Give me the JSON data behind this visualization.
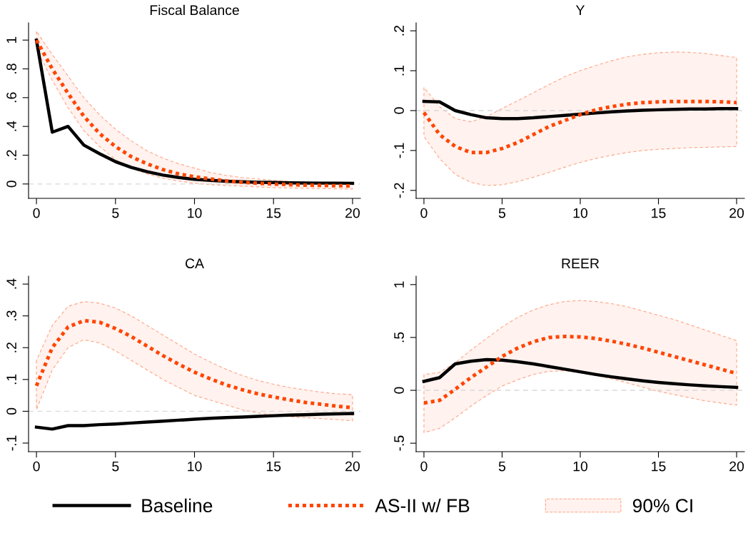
{
  "chart_data": [
    {
      "type": "line",
      "title": "Fiscal Balance",
      "x": [
        0,
        1,
        2,
        3,
        4,
        5,
        6,
        7,
        8,
        9,
        10,
        11,
        12,
        13,
        14,
        15,
        16,
        17,
        18,
        19,
        20
      ],
      "xlim": [
        -0.5,
        20.5
      ],
      "xticks": [
        0,
        5,
        10,
        15,
        20
      ],
      "ylim": [
        -0.1,
        1.12
      ],
      "yticks": [
        0,
        {
          "value": 0.2,
          "label": ".2"
        },
        {
          "value": 0.4,
          "label": ".4"
        },
        {
          "value": 0.6,
          "label": ".6"
        },
        {
          "value": 0.8,
          "label": ".8"
        },
        1
      ],
      "grid": false,
      "ref_lines": [
        {
          "axis": "y",
          "value": 0,
          "color": "#d9d9d9",
          "line_style": "dashed"
        }
      ],
      "series": [
        {
          "color": "#000000",
          "line_style": "solid",
          "values": [
            1,
            0.36,
            0.4,
            0.27,
            0.21,
            0.155,
            0.115,
            0.085,
            0.062,
            0.045,
            0.033,
            0.025,
            0.019,
            0.015,
            0.012,
            0.01,
            0.008,
            0.007,
            0.006,
            0.006,
            0.005
          ]
        },
        {
          "color": "#ff4500",
          "line_style": "dotted",
          "values": [
            1,
            0.8,
            0.63,
            0.47,
            0.35,
            0.26,
            0.19,
            0.14,
            0.1,
            0.07,
            0.05,
            0.035,
            0.022,
            0.012,
            0.005,
            0,
            -0.005,
            -0.008,
            -0.01,
            -0.012,
            -0.013
          ],
          "lower": [
            0.94,
            0.72,
            0.53,
            0.37,
            0.26,
            0.17,
            0.11,
            0.07,
            0.04,
            0.02,
            0.005,
            -0.005,
            -0.01,
            -0.015,
            -0.02,
            -0.025,
            -0.028,
            -0.03,
            -0.032,
            -0.034,
            -0.035
          ],
          "upper": [
            1.06,
            0.9,
            0.75,
            0.6,
            0.48,
            0.38,
            0.3,
            0.23,
            0.18,
            0.14,
            0.11,
            0.08,
            0.06,
            0.045,
            0.035,
            0.025,
            0.018,
            0.012,
            0.008,
            0.005,
            0.002
          ]
        }
      ]
    },
    {
      "type": "line",
      "title": "Y",
      "x": [
        0,
        1,
        2,
        3,
        4,
        5,
        6,
        7,
        8,
        9,
        10,
        11,
        12,
        13,
        14,
        15,
        16,
        17,
        18,
        19,
        20
      ],
      "xlim": [
        -0.5,
        20.5
      ],
      "xticks": [
        0,
        5,
        10,
        15,
        20
      ],
      "ylim": [
        -0.22,
        0.22
      ],
      "yticks": [
        {
          "value": -0.2,
          "label": "-.2"
        },
        {
          "value": -0.1,
          "label": "-.1"
        },
        0,
        {
          "value": 0.1,
          "label": ".1"
        },
        {
          "value": 0.2,
          "label": ".2"
        }
      ],
      "grid": false,
      "ref_lines": [
        {
          "axis": "y",
          "value": 0,
          "color": "#d9d9d9",
          "line_style": "dashed"
        }
      ],
      "series": [
        {
          "color": "#000000",
          "line_style": "solid",
          "values": [
            0.023,
            0.022,
            0,
            -0.01,
            -0.018,
            -0.02,
            -0.02,
            -0.018,
            -0.015,
            -0.012,
            -0.009,
            -0.006,
            -0.003,
            -0.001,
            0.001,
            0.002,
            0.003,
            0.004,
            0.004,
            0.005,
            0.005
          ]
        },
        {
          "color": "#ff4500",
          "line_style": "dotted",
          "values": [
            -0.005,
            -0.06,
            -0.09,
            -0.105,
            -0.105,
            -0.095,
            -0.08,
            -0.06,
            -0.04,
            -0.025,
            -0.01,
            0.002,
            0.01,
            0.016,
            0.02,
            0.022,
            0.023,
            0.023,
            0.023,
            0.022,
            0.02
          ],
          "lower": [
            -0.065,
            -0.12,
            -0.16,
            -0.18,
            -0.188,
            -0.186,
            -0.178,
            -0.167,
            -0.155,
            -0.142,
            -0.13,
            -0.12,
            -0.112,
            -0.105,
            -0.1,
            -0.097,
            -0.095,
            -0.093,
            -0.092,
            -0.091,
            -0.09
          ],
          "upper": [
            0.058,
            0.01,
            -0.02,
            -0.028,
            -0.015,
            0.005,
            0.025,
            0.045,
            0.065,
            0.085,
            0.1,
            0.113,
            0.125,
            0.135,
            0.141,
            0.145,
            0.147,
            0.146,
            0.143,
            0.138,
            0.133
          ]
        }
      ]
    },
    {
      "type": "line",
      "title": "CA",
      "x": [
        0,
        1,
        2,
        3,
        4,
        5,
        6,
        7,
        8,
        9,
        10,
        11,
        12,
        13,
        14,
        15,
        16,
        17,
        18,
        19,
        20
      ],
      "xlim": [
        -0.5,
        20.5
      ],
      "xticks": [
        0,
        5,
        10,
        15,
        20
      ],
      "ylim": [
        -0.127,
        0.425
      ],
      "yticks": [
        {
          "value": -0.1,
          "label": "-.1"
        },
        0,
        {
          "value": 0.1,
          "label": ".1"
        },
        {
          "value": 0.2,
          "label": ".2"
        },
        {
          "value": 0.3,
          "label": ".3"
        },
        {
          "value": 0.4,
          "label": ".4"
        }
      ],
      "grid": false,
      "ref_lines": [
        {
          "axis": "y",
          "value": 0,
          "color": "#d9d9d9",
          "line_style": "dashed"
        }
      ],
      "series": [
        {
          "color": "#000000",
          "line_style": "solid",
          "values": [
            -0.05,
            -0.056,
            -0.045,
            -0.045,
            -0.042,
            -0.04,
            -0.037,
            -0.034,
            -0.031,
            -0.028,
            -0.025,
            -0.022,
            -0.02,
            -0.018,
            -0.016,
            -0.014,
            -0.012,
            -0.011,
            -0.009,
            -0.008,
            -0.007
          ]
        },
        {
          "color": "#ff4500",
          "line_style": "dotted",
          "values": [
            0.08,
            0.2,
            0.265,
            0.285,
            0.28,
            0.26,
            0.235,
            0.205,
            0.175,
            0.148,
            0.123,
            0.102,
            0.083,
            0.068,
            0.055,
            0.045,
            0.036,
            0.028,
            0.022,
            0.016,
            0.011
          ],
          "lower": [
            0.005,
            0.13,
            0.2,
            0.225,
            0.215,
            0.19,
            0.16,
            0.13,
            0.1,
            0.075,
            0.05,
            0.035,
            0.02,
            0.005,
            -0.005,
            -0.012,
            -0.017,
            -0.02,
            -0.023,
            -0.026,
            -0.03
          ],
          "upper": [
            0.16,
            0.27,
            0.33,
            0.345,
            0.34,
            0.325,
            0.3,
            0.27,
            0.24,
            0.21,
            0.18,
            0.155,
            0.132,
            0.113,
            0.097,
            0.085,
            0.075,
            0.067,
            0.06,
            0.055,
            0.052
          ]
        }
      ]
    },
    {
      "type": "line",
      "title": "REER",
      "x": [
        0,
        1,
        2,
        3,
        4,
        5,
        6,
        7,
        8,
        9,
        10,
        11,
        12,
        13,
        14,
        15,
        16,
        17,
        18,
        19,
        20
      ],
      "xlim": [
        -0.5,
        20.5
      ],
      "xticks": [
        0,
        5,
        10,
        15,
        20
      ],
      "ylim": [
        -0.58,
        1.08
      ],
      "yticks": [
        {
          "value": -0.5,
          "label": "-.5"
        },
        0,
        {
          "value": 0.5,
          "label": ".5"
        },
        1
      ],
      "grid": false,
      "legend": "bottom",
      "annotations": [
        "90% CI"
      ],
      "ref_lines": [
        {
          "axis": "y",
          "value": 0,
          "color": "#d9d9d9",
          "line_style": "dashed"
        }
      ],
      "series": [
        {
          "name": "Baseline",
          "color": "#000000",
          "line_style": "solid",
          "values": [
            0.085,
            0.12,
            0.25,
            0.275,
            0.29,
            0.285,
            0.27,
            0.25,
            0.225,
            0.2,
            0.175,
            0.15,
            0.128,
            0.108,
            0.09,
            0.075,
            0.063,
            0.052,
            0.043,
            0.035,
            0.028
          ]
        },
        {
          "name": "AS-II w/ FB",
          "color": "#ff4500",
          "line_style": "dotted",
          "values": [
            -0.12,
            -0.095,
            0.01,
            0.12,
            0.22,
            0.32,
            0.4,
            0.46,
            0.5,
            0.51,
            0.505,
            0.49,
            0.465,
            0.435,
            0.4,
            0.36,
            0.32,
            0.28,
            0.24,
            0.2,
            0.16
          ],
          "lower": [
            -0.4,
            -0.36,
            -0.26,
            -0.15,
            -0.05,
            0.04,
            0.1,
            0.15,
            0.18,
            0.185,
            0.17,
            0.14,
            0.11,
            0.07,
            0.03,
            -0.01,
            -0.04,
            -0.07,
            -0.1,
            -0.12,
            -0.14
          ],
          "upper": [
            0.15,
            0.17,
            0.26,
            0.38,
            0.49,
            0.6,
            0.69,
            0.76,
            0.81,
            0.84,
            0.85,
            0.84,
            0.82,
            0.79,
            0.75,
            0.71,
            0.67,
            0.62,
            0.57,
            0.52,
            0.47
          ]
        }
      ]
    }
  ]
}
